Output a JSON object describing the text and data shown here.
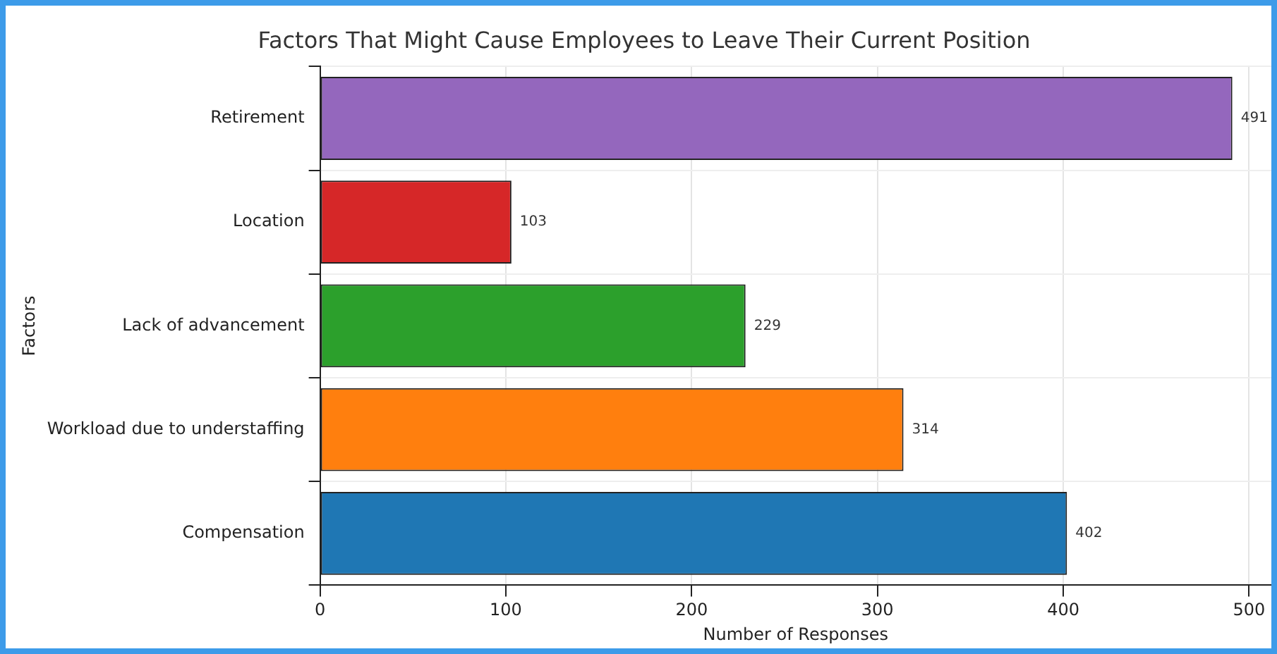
{
  "chart_data": {
    "type": "bar",
    "orientation": "horizontal",
    "title": "Factors That Might Cause Employees to Leave Their Current Position",
    "xlabel": "Number of Responses",
    "ylabel": "Factors",
    "categories": [
      "Retirement",
      "Location",
      "Lack of advancement",
      "Workload due to understaffing",
      "Compensation"
    ],
    "values": [
      491,
      103,
      229,
      314,
      402
    ],
    "colors": [
      "#9467bd",
      "#d62728",
      "#2ca02c",
      "#ff7f0e",
      "#1f77b4"
    ],
    "xlim": [
      0,
      512
    ],
    "xticks": [
      0,
      100,
      200,
      300,
      400,
      500
    ],
    "grid": true,
    "data_labels": true,
    "legend": false
  }
}
